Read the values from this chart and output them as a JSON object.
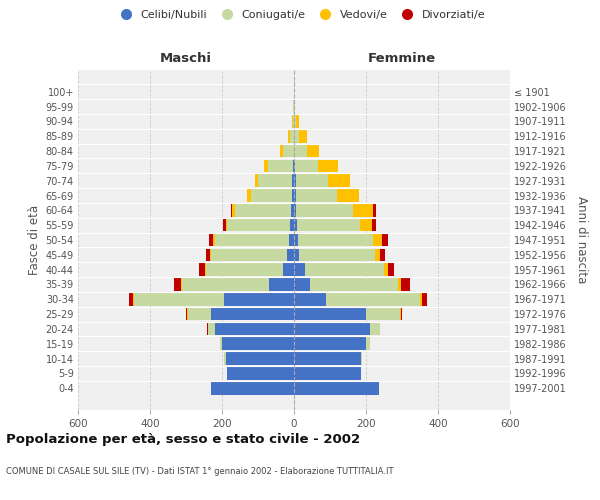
{
  "age_groups": [
    "0-4",
    "5-9",
    "10-14",
    "15-19",
    "20-24",
    "25-29",
    "30-34",
    "35-39",
    "40-44",
    "45-49",
    "50-54",
    "55-59",
    "60-64",
    "65-69",
    "70-74",
    "75-79",
    "80-84",
    "85-89",
    "90-94",
    "95-99",
    "100+"
  ],
  "birth_years": [
    "1997-2001",
    "1992-1996",
    "1987-1991",
    "1982-1986",
    "1977-1981",
    "1972-1976",
    "1967-1971",
    "1962-1966",
    "1957-1961",
    "1952-1956",
    "1947-1951",
    "1942-1946",
    "1937-1941",
    "1932-1936",
    "1927-1931",
    "1922-1926",
    "1917-1921",
    "1912-1916",
    "1907-1911",
    "1902-1906",
    "≤ 1901"
  ],
  "males": {
    "celibi": [
      230,
      185,
      190,
      200,
      220,
      230,
      195,
      70,
      30,
      20,
      15,
      10,
      8,
      5,
      5,
      3,
      0,
      0,
      0,
      0,
      0
    ],
    "coniugati": [
      0,
      0,
      5,
      5,
      20,
      65,
      250,
      240,
      215,
      210,
      205,
      175,
      155,
      115,
      95,
      70,
      30,
      12,
      4,
      2,
      0
    ],
    "vedovi": [
      0,
      0,
      0,
      0,
      0,
      3,
      3,
      3,
      3,
      3,
      5,
      5,
      8,
      10,
      8,
      10,
      10,
      5,
      2,
      0,
      0
    ],
    "divorziati": [
      0,
      0,
      0,
      0,
      3,
      3,
      10,
      20,
      15,
      12,
      12,
      8,
      5,
      0,
      0,
      0,
      0,
      0,
      0,
      0,
      0
    ]
  },
  "females": {
    "nubili": [
      235,
      185,
      185,
      200,
      210,
      200,
      90,
      45,
      30,
      15,
      10,
      8,
      5,
      5,
      5,
      3,
      0,
      0,
      0,
      0,
      0
    ],
    "coniugate": [
      0,
      0,
      5,
      10,
      28,
      95,
      260,
      245,
      220,
      210,
      210,
      175,
      160,
      115,
      90,
      65,
      35,
      15,
      5,
      2,
      0
    ],
    "vedove": [
      0,
      0,
      0,
      0,
      0,
      3,
      5,
      8,
      10,
      15,
      25,
      35,
      55,
      60,
      60,
      55,
      35,
      20,
      8,
      2,
      0
    ],
    "divorziate": [
      0,
      0,
      0,
      0,
      0,
      3,
      15,
      25,
      18,
      12,
      15,
      10,
      8,
      0,
      0,
      0,
      0,
      0,
      0,
      0,
      0
    ]
  },
  "colors": {
    "celibi": "#4472c4",
    "coniugati": "#c5d9a0",
    "vedovi": "#ffc000",
    "divorziati": "#c00000"
  },
  "title": "Popolazione per età, sesso e stato civile - 2002",
  "subtitle": "COMUNE DI CASALE SUL SILE (TV) - Dati ISTAT 1° gennaio 2002 - Elaborazione TUTTITALIA.IT",
  "xlabel_left": "Maschi",
  "xlabel_right": "Femmine",
  "ylabel_left": "Fasce di età",
  "ylabel_right": "Anni di nascita",
  "xlim": 600,
  "legend_labels": [
    "Celibi/Nubili",
    "Coniugati/e",
    "Vedovi/e",
    "Divorziati/e"
  ],
  "bg_color": "#ffffff",
  "grid_color": "#cccccc"
}
